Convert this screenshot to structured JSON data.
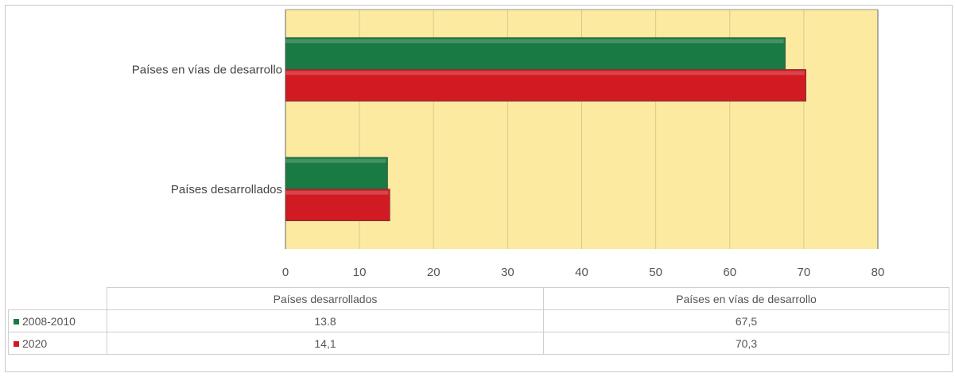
{
  "chart_data": {
    "type": "bar",
    "orientation": "horizontal",
    "categories": [
      "Países en vías de desarrollo",
      "Países desarrollados"
    ],
    "series": [
      {
        "name": "2008-2010",
        "values": [
          67.5,
          13.8
        ],
        "value_labels": [
          "67,5",
          "13.8"
        ],
        "color": "#1a7a43"
      },
      {
        "name": "2020",
        "values": [
          70.3,
          14.1
        ],
        "value_labels": [
          "70,3",
          "14,1"
        ],
        "color": "#d11a22"
      }
    ],
    "xlim": [
      0,
      80
    ],
    "xticks": [
      0,
      10,
      20,
      30,
      40,
      50,
      60,
      70,
      80
    ],
    "grid": true,
    "plot_background": "#fbeaa0",
    "legend": "data-table-below"
  },
  "table": {
    "columns": [
      "Países desarrollados",
      "Países en vías de desarrollo"
    ]
  }
}
